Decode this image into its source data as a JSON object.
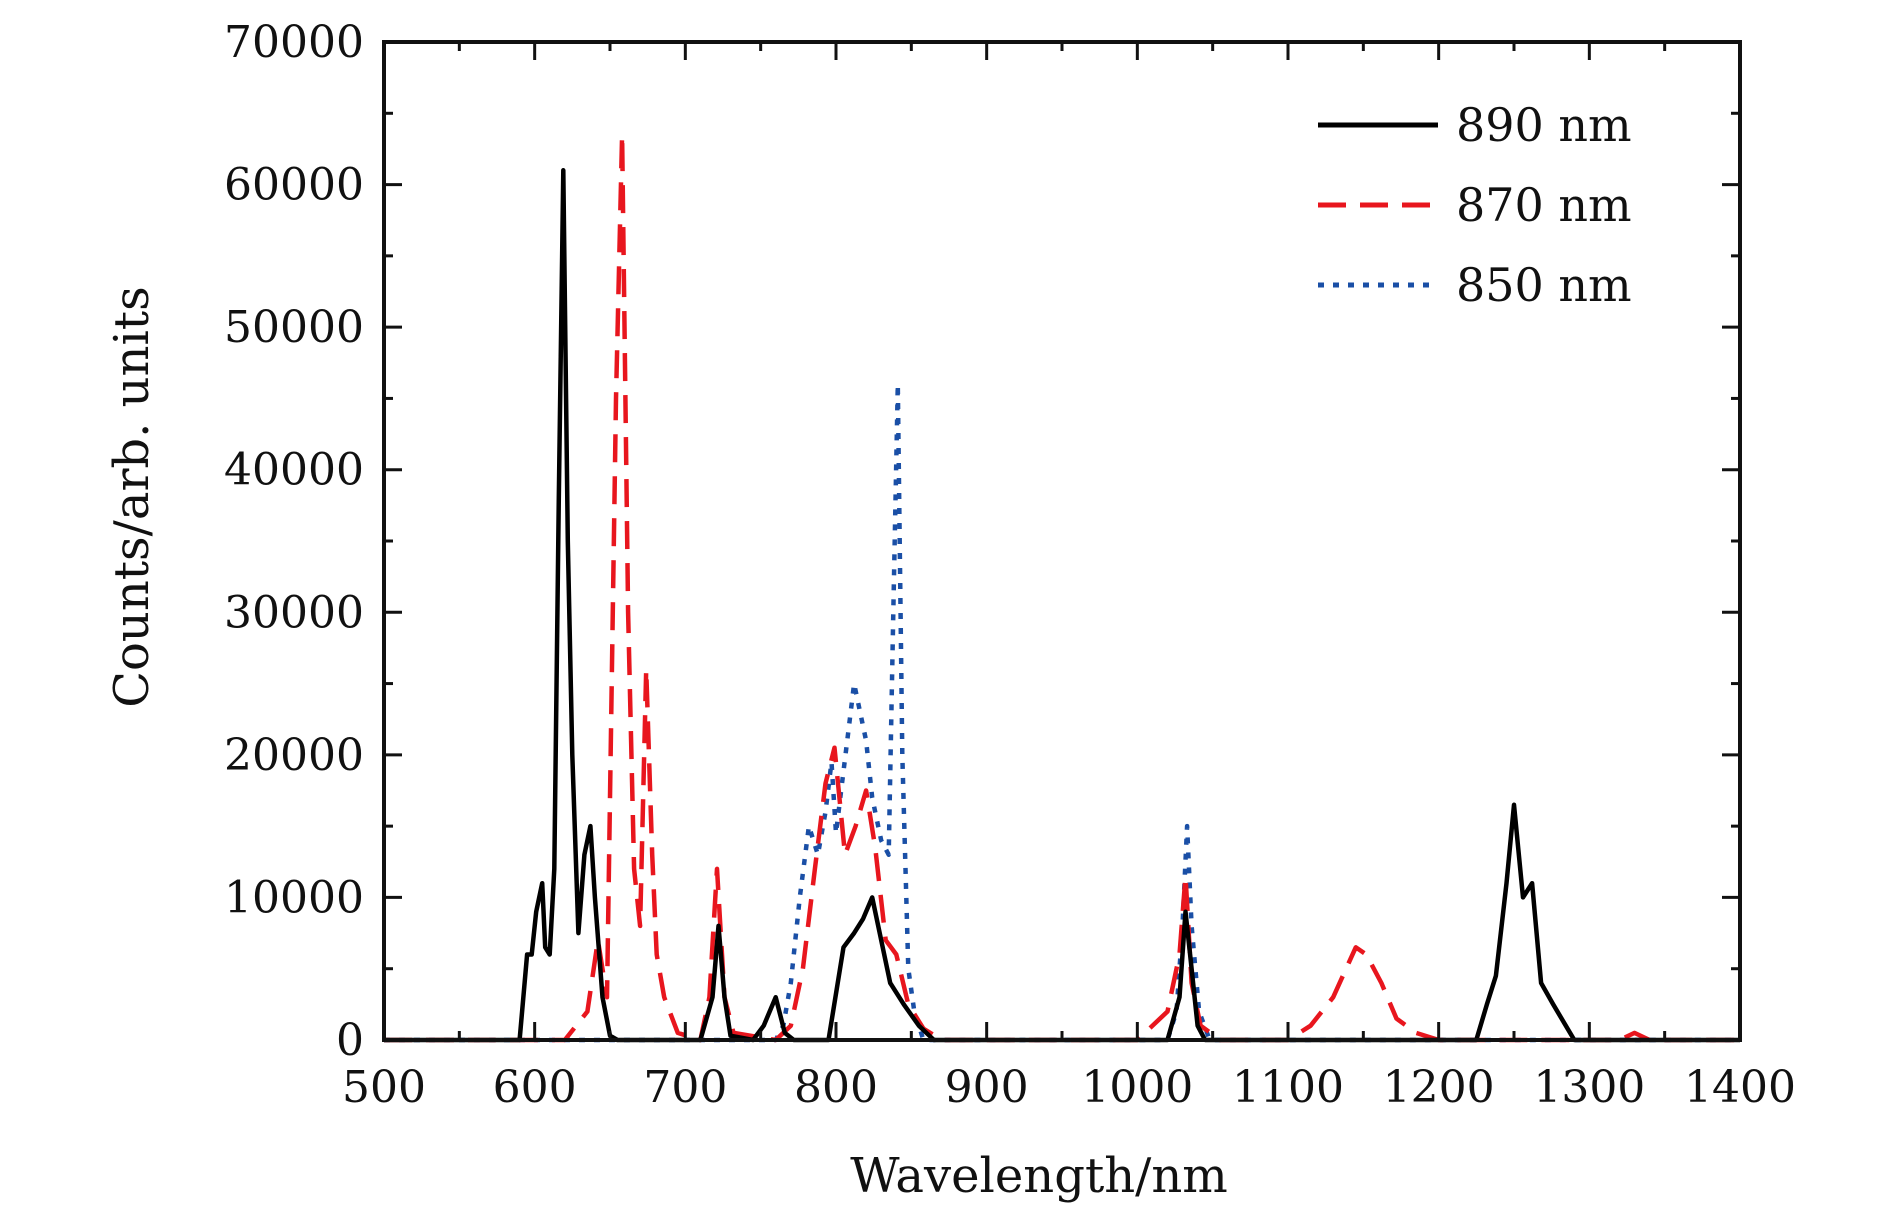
{
  "chart_data": {
    "type": "line",
    "title": "",
    "xlabel": "Wavelength/nm",
    "ylabel": "Counts/arb. units",
    "xlim": [
      500,
      1400
    ],
    "ylim": [
      0,
      70000
    ],
    "xticks": [
      500,
      600,
      700,
      800,
      900,
      1000,
      1100,
      1200,
      1300,
      1400
    ],
    "yticks": [
      0,
      10000,
      20000,
      30000,
      40000,
      50000,
      60000,
      70000
    ],
    "grid": false,
    "legend_position": "top-right",
    "series": [
      {
        "name": "890 nm",
        "color": "#000000",
        "dash": "solid",
        "points": [
          [
            500,
            0
          ],
          [
            590,
            0
          ],
          [
            595,
            6000
          ],
          [
            598,
            6000
          ],
          [
            601,
            9000
          ],
          [
            605,
            11000
          ],
          [
            607,
            6500
          ],
          [
            610,
            6000
          ],
          [
            613,
            12000
          ],
          [
            616,
            38000
          ],
          [
            619,
            61000
          ],
          [
            622,
            35000
          ],
          [
            625,
            20000
          ],
          [
            629,
            7500
          ],
          [
            633,
            13000
          ],
          [
            637,
            15000
          ],
          [
            640,
            10000
          ],
          [
            645,
            3000
          ],
          [
            650,
            300
          ],
          [
            655,
            0
          ],
          [
            710,
            0
          ],
          [
            718,
            3000
          ],
          [
            722,
            8000
          ],
          [
            726,
            3000
          ],
          [
            730,
            300
          ],
          [
            745,
            0
          ],
          [
            752,
            1000
          ],
          [
            760,
            3000
          ],
          [
            766,
            500
          ],
          [
            772,
            0
          ],
          [
            795,
            0
          ],
          [
            805,
            6500
          ],
          [
            812,
            7500
          ],
          [
            818,
            8500
          ],
          [
            824,
            10000
          ],
          [
            830,
            7000
          ],
          [
            836,
            4000
          ],
          [
            845,
            2500
          ],
          [
            855,
            1000
          ],
          [
            865,
            0
          ],
          [
            1020,
            0
          ],
          [
            1028,
            3000
          ],
          [
            1032,
            9000
          ],
          [
            1035,
            6000
          ],
          [
            1040,
            1000
          ],
          [
            1045,
            0
          ],
          [
            1225,
            0
          ],
          [
            1232,
            2500
          ],
          [
            1238,
            4500
          ],
          [
            1245,
            11000
          ],
          [
            1250,
            16500
          ],
          [
            1256,
            10000
          ],
          [
            1262,
            11000
          ],
          [
            1268,
            4000
          ],
          [
            1276,
            2500
          ],
          [
            1290,
            0
          ],
          [
            1400,
            0
          ]
        ]
      },
      {
        "name": "870 nm",
        "color": "#e8161e",
        "dash": "dashed",
        "points": [
          [
            500,
            0
          ],
          [
            620,
            0
          ],
          [
            635,
            2000
          ],
          [
            642,
            7000
          ],
          [
            648,
            3000
          ],
          [
            654,
            45000
          ],
          [
            658,
            63500
          ],
          [
            662,
            30000
          ],
          [
            666,
            12000
          ],
          [
            670,
            8000
          ],
          [
            674,
            26000
          ],
          [
            678,
            13000
          ],
          [
            681,
            6000
          ],
          [
            686,
            3000
          ],
          [
            695,
            500
          ],
          [
            710,
            0
          ],
          [
            716,
            3000
          ],
          [
            721,
            12000
          ],
          [
            726,
            3000
          ],
          [
            732,
            500
          ],
          [
            760,
            0
          ],
          [
            770,
            1000
          ],
          [
            778,
            5000
          ],
          [
            786,
            12000
          ],
          [
            793,
            18000
          ],
          [
            799,
            20500
          ],
          [
            806,
            13000
          ],
          [
            813,
            15000
          ],
          [
            820,
            17500
          ],
          [
            826,
            13500
          ],
          [
            833,
            7000
          ],
          [
            840,
            6000
          ],
          [
            848,
            2500
          ],
          [
            858,
            800
          ],
          [
            870,
            0
          ],
          [
            1000,
            0
          ],
          [
            1020,
            2000
          ],
          [
            1028,
            6000
          ],
          [
            1032,
            11500
          ],
          [
            1036,
            4000
          ],
          [
            1042,
            1000
          ],
          [
            1055,
            0
          ],
          [
            1100,
            0
          ],
          [
            1115,
            1000
          ],
          [
            1130,
            3000
          ],
          [
            1145,
            6500
          ],
          [
            1152,
            6000
          ],
          [
            1162,
            4000
          ],
          [
            1172,
            1500
          ],
          [
            1185,
            500
          ],
          [
            1200,
            0
          ],
          [
            1320,
            0
          ],
          [
            1330,
            500
          ],
          [
            1340,
            0
          ],
          [
            1400,
            0
          ]
        ]
      },
      {
        "name": "850 nm",
        "color": "#1a4fa6",
        "dash": "dotted",
        "points": [
          [
            500,
            0
          ],
          [
            760,
            0
          ],
          [
            765,
            1000
          ],
          [
            770,
            4000
          ],
          [
            776,
            10000
          ],
          [
            782,
            15000
          ],
          [
            788,
            13000
          ],
          [
            793,
            16000
          ],
          [
            797,
            19500
          ],
          [
            800,
            14500
          ],
          [
            804,
            18000
          ],
          [
            808,
            21500
          ],
          [
            812,
            25000
          ],
          [
            816,
            23000
          ],
          [
            820,
            21000
          ],
          [
            824,
            17000
          ],
          [
            830,
            14000
          ],
          [
            835,
            13000
          ],
          [
            838,
            30000
          ],
          [
            841,
            46000
          ],
          [
            844,
            20000
          ],
          [
            848,
            5000
          ],
          [
            852,
            2000
          ],
          [
            858,
            0
          ],
          [
            1020,
            0
          ],
          [
            1026,
            2000
          ],
          [
            1030,
            8000
          ],
          [
            1033,
            15000
          ],
          [
            1036,
            8000
          ],
          [
            1041,
            2000
          ],
          [
            1048,
            0
          ],
          [
            1400,
            0
          ]
        ]
      }
    ]
  }
}
